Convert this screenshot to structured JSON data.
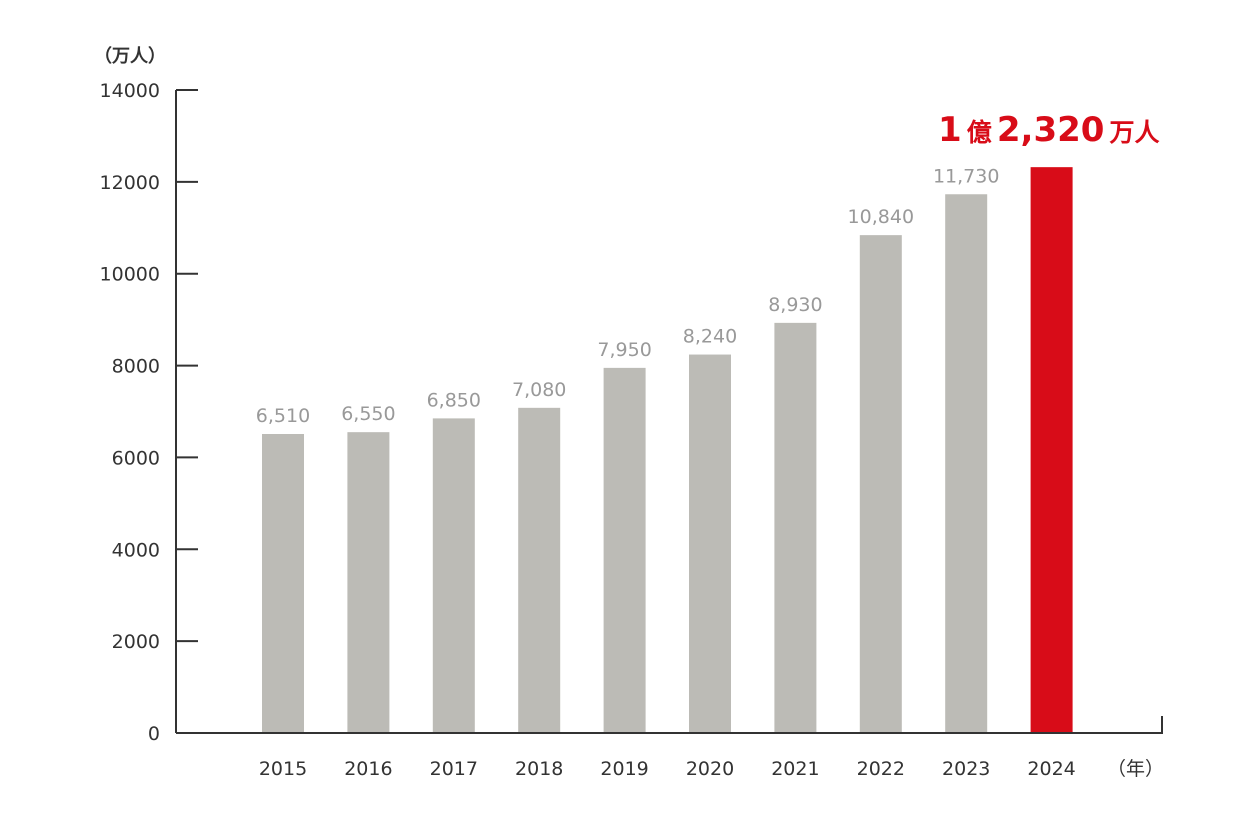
{
  "chart_data": {
    "type": "bar",
    "categories": [
      "2015",
      "2016",
      "2017",
      "2018",
      "2019",
      "2020",
      "2021",
      "2022",
      "2023",
      "2024"
    ],
    "values": [
      6510,
      6550,
      6850,
      7080,
      7950,
      8240,
      8930,
      10840,
      11730,
      12320
    ],
    "value_labels": [
      "6,510",
      "6,550",
      "6,850",
      "7,080",
      "7,950",
      "8,240",
      "8,930",
      "10,840",
      "11,730",
      ""
    ],
    "ylim": [
      0,
      14000
    ],
    "yticks": [
      0,
      2000,
      4000,
      6000,
      8000,
      10000,
      12000,
      14000
    ],
    "ylabel": "（万人）",
    "xlabel": "（年）",
    "grid": false,
    "colors": {
      "default": "#bcbbb6",
      "highlight": "#d80c18"
    },
    "highlight_index": 9,
    "highlight_label": {
      "num1": "1",
      "word1": "億",
      "num2": "2,320",
      "word2": "万人"
    }
  }
}
